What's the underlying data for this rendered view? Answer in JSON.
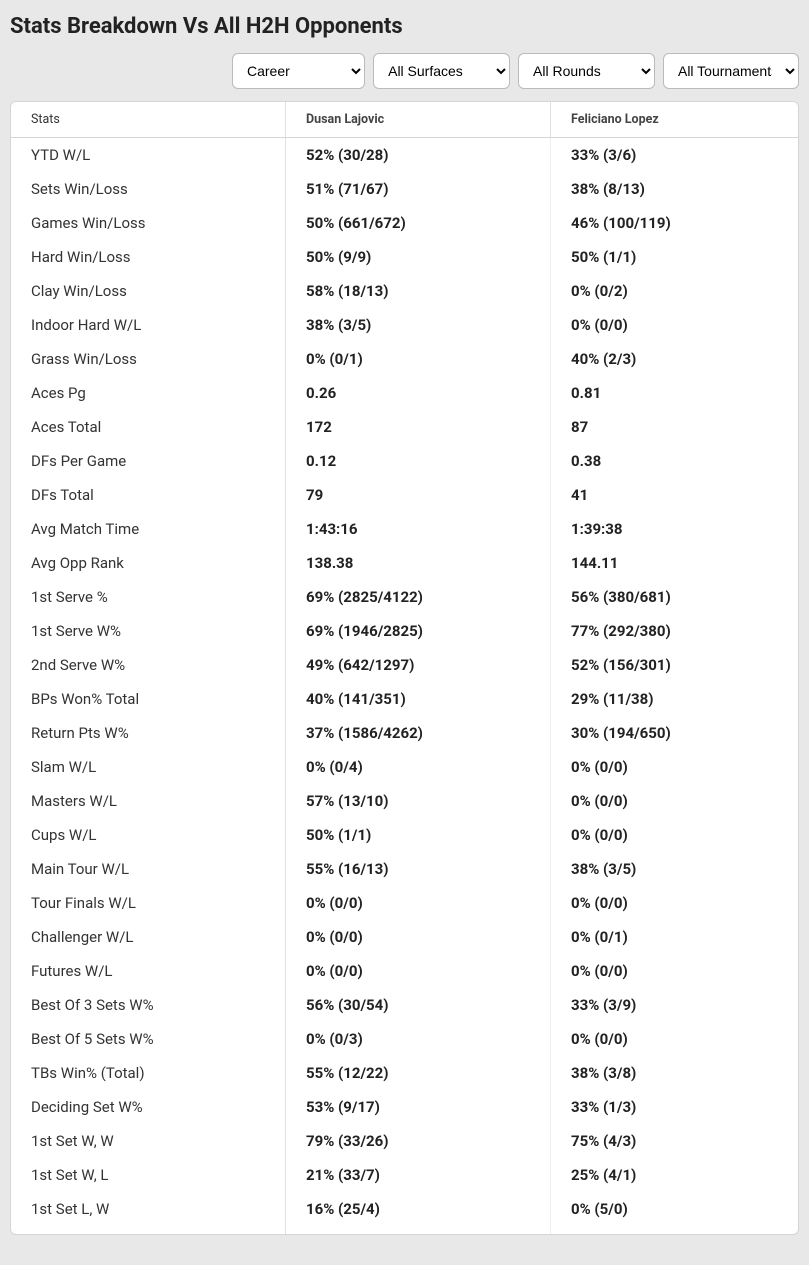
{
  "title": "Stats Breakdown Vs All H2H Opponents",
  "filters": {
    "career": "Career",
    "surfaces": "All Surfaces",
    "rounds": "All Rounds",
    "tournaments": "All Tournaments"
  },
  "columns": {
    "stat": "Stats",
    "p1": "Dusan Lajovic",
    "p2": "Feliciano Lopez"
  },
  "rows": [
    {
      "stat": "YTD W/L",
      "p1": "52% (30/28)",
      "p2": "33% (3/6)"
    },
    {
      "stat": "Sets Win/Loss",
      "p1": "51% (71/67)",
      "p2": "38% (8/13)"
    },
    {
      "stat": "Games Win/Loss",
      "p1": "50% (661/672)",
      "p2": "46% (100/119)"
    },
    {
      "stat": "Hard Win/Loss",
      "p1": "50% (9/9)",
      "p2": "50% (1/1)"
    },
    {
      "stat": "Clay Win/Loss",
      "p1": "58% (18/13)",
      "p2": "0% (0/2)"
    },
    {
      "stat": "Indoor Hard W/L",
      "p1": "38% (3/5)",
      "p2": "0% (0/0)"
    },
    {
      "stat": "Grass Win/Loss",
      "p1": "0% (0/1)",
      "p2": "40% (2/3)"
    },
    {
      "stat": "Aces Pg",
      "p1": "0.26",
      "p2": "0.81"
    },
    {
      "stat": "Aces Total",
      "p1": "172",
      "p2": "87"
    },
    {
      "stat": "DFs Per Game",
      "p1": "0.12",
      "p2": "0.38"
    },
    {
      "stat": "DFs Total",
      "p1": "79",
      "p2": "41"
    },
    {
      "stat": "Avg Match Time",
      "p1": "1:43:16",
      "p2": "1:39:38"
    },
    {
      "stat": "Avg Opp Rank",
      "p1": "138.38",
      "p2": "144.11"
    },
    {
      "stat": "1st Serve %",
      "p1": "69% (2825/4122)",
      "p2": "56% (380/681)"
    },
    {
      "stat": "1st Serve W%",
      "p1": "69% (1946/2825)",
      "p2": "77% (292/380)"
    },
    {
      "stat": "2nd Serve W%",
      "p1": "49% (642/1297)",
      "p2": "52% (156/301)"
    },
    {
      "stat": "BPs Won% Total",
      "p1": "40% (141/351)",
      "p2": "29% (11/38)"
    },
    {
      "stat": "Return Pts W%",
      "p1": "37% (1586/4262)",
      "p2": "30% (194/650)"
    },
    {
      "stat": "Slam W/L",
      "p1": "0% (0/4)",
      "p2": "0% (0/0)"
    },
    {
      "stat": "Masters W/L",
      "p1": "57% (13/10)",
      "p2": "0% (0/0)"
    },
    {
      "stat": "Cups W/L",
      "p1": "50% (1/1)",
      "p2": "0% (0/0)"
    },
    {
      "stat": "Main Tour W/L",
      "p1": "55% (16/13)",
      "p2": "38% (3/5)"
    },
    {
      "stat": "Tour Finals W/L",
      "p1": "0% (0/0)",
      "p2": "0% (0/0)"
    },
    {
      "stat": "Challenger W/L",
      "p1": "0% (0/0)",
      "p2": "0% (0/1)"
    },
    {
      "stat": "Futures W/L",
      "p1": "0% (0/0)",
      "p2": "0% (0/0)"
    },
    {
      "stat": "Best Of 3 Sets W%",
      "p1": "56% (30/54)",
      "p2": "33% (3/9)"
    },
    {
      "stat": "Best Of 5 Sets W%",
      "p1": "0% (0/3)",
      "p2": "0% (0/0)"
    },
    {
      "stat": "TBs Win% (Total)",
      "p1": "55% (12/22)",
      "p2": "38% (3/8)"
    },
    {
      "stat": "Deciding Set W%",
      "p1": "53% (9/17)",
      "p2": "33% (1/3)"
    },
    {
      "stat": "1st Set W, W",
      "p1": "79% (33/26)",
      "p2": "75% (4/3)"
    },
    {
      "stat": "1st Set W, L",
      "p1": "21% (33/7)",
      "p2": "25% (4/1)"
    },
    {
      "stat": "1st Set L, W",
      "p1": "16% (25/4)",
      "p2": "0% (5/0)"
    }
  ]
}
